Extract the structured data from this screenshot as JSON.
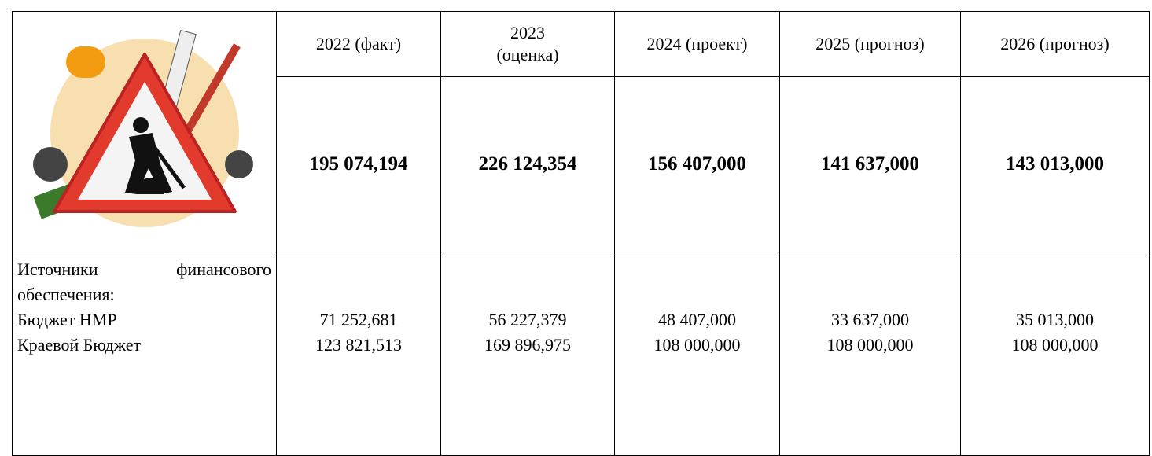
{
  "table": {
    "columns": [
      "2022 (факт)",
      "2023 (оценка)",
      "2024 (проект)",
      "2025 (прогноз)",
      "2026 (прогноз)"
    ],
    "totals": [
      "195 074,194",
      "226 124,354",
      "156 407,000",
      "141 637,000",
      "143 013,000"
    ],
    "sources_label": "Источники финансового обеспечения:",
    "rows": [
      {
        "name": "Бюджет НМР",
        "values": [
          "71 252,681",
          "56 227,379",
          "48 407,000",
          "33 637,000",
          "35 013,000"
        ]
      },
      {
        "name": "Краевой Бюджет",
        "values": [
          "123 821,513",
          "169 896,975",
          "108 000,000",
          "108 000,000",
          "108 000,000"
        ]
      }
    ]
  }
}
